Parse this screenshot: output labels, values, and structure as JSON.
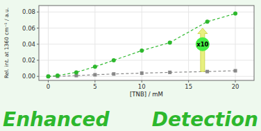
{
  "chart_data": {
    "type": "line",
    "xlabel": "[TNB] / mM",
    "ylabel": "Rel. int. at 1360 cm⁻¹ / a.u.",
    "x": [
      0,
      1,
      3,
      5,
      7,
      10,
      13,
      17,
      20
    ],
    "series": [
      {
        "color": "#888888",
        "marker": "square",
        "line_style": "dashed",
        "values": [
          0.0,
          0.0,
          0.001,
          0.002,
          0.003,
          0.004,
          0.005,
          0.006,
          0.007
        ]
      },
      {
        "color": "#2db82d",
        "marker": "circle",
        "line_style": "dashed",
        "values": [
          0.0,
          0.001,
          0.005,
          0.012,
          0.02,
          0.032,
          0.042,
          0.068,
          0.078
        ]
      }
    ],
    "xlim": [
      -1,
      22
    ],
    "ylim": [
      -0.005,
      0.088
    ],
    "xticks": [
      0,
      5,
      10,
      15,
      20
    ],
    "yticks": [
      {
        "value": 0,
        "label": "0.00"
      },
      0.02,
      0.04,
      0.06,
      0.08
    ],
    "annotations": [
      {
        "text": "Enhanced"
      },
      {
        "text": "Detection"
      },
      {
        "text": "x10",
        "x": 16.5,
        "y": 0.04,
        "arrow": [
          0.006,
          0.06
        ]
      }
    ]
  }
}
